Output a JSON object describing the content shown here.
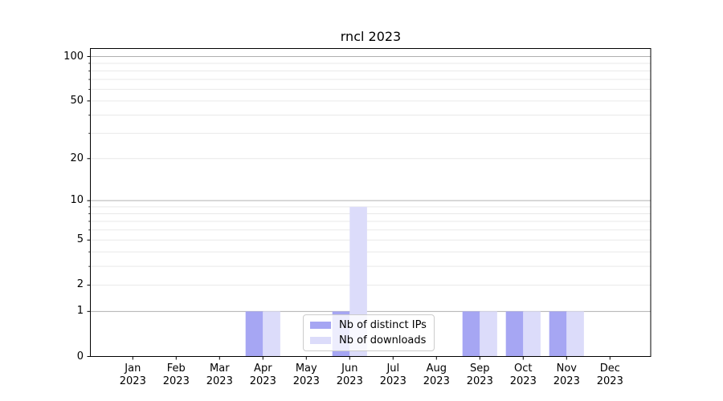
{
  "chart_data": {
    "type": "bar",
    "title": "rncl 2023",
    "categories": [
      "Jan 2023",
      "Feb 2023",
      "Mar 2023",
      "Apr 2023",
      "May 2023",
      "Jun 2023",
      "Jul 2023",
      "Aug 2023",
      "Sep 2023",
      "Oct 2023",
      "Nov 2023",
      "Dec 2023"
    ],
    "series": [
      {
        "name": "Nb of distinct IPs",
        "color": "#a6a6f3",
        "values": [
          0,
          0,
          0,
          1,
          0,
          1,
          0,
          0,
          1,
          1,
          1,
          0
        ]
      },
      {
        "name": "Nb of downloads",
        "color": "#dcdcfa",
        "values": [
          0,
          0,
          0,
          1,
          0,
          9,
          0,
          0,
          1,
          1,
          1,
          0
        ]
      }
    ],
    "yscale": "log1p",
    "yticks": [
      0,
      1,
      2,
      5,
      10,
      20,
      50,
      100
    ],
    "ylim": [
      0,
      114
    ],
    "xlabel": "",
    "ylabel": "",
    "grid": {
      "which": "both",
      "major_color": "#b0b0b0",
      "minor_color": "#e9e9e9"
    },
    "legend_position": "lower center"
  }
}
